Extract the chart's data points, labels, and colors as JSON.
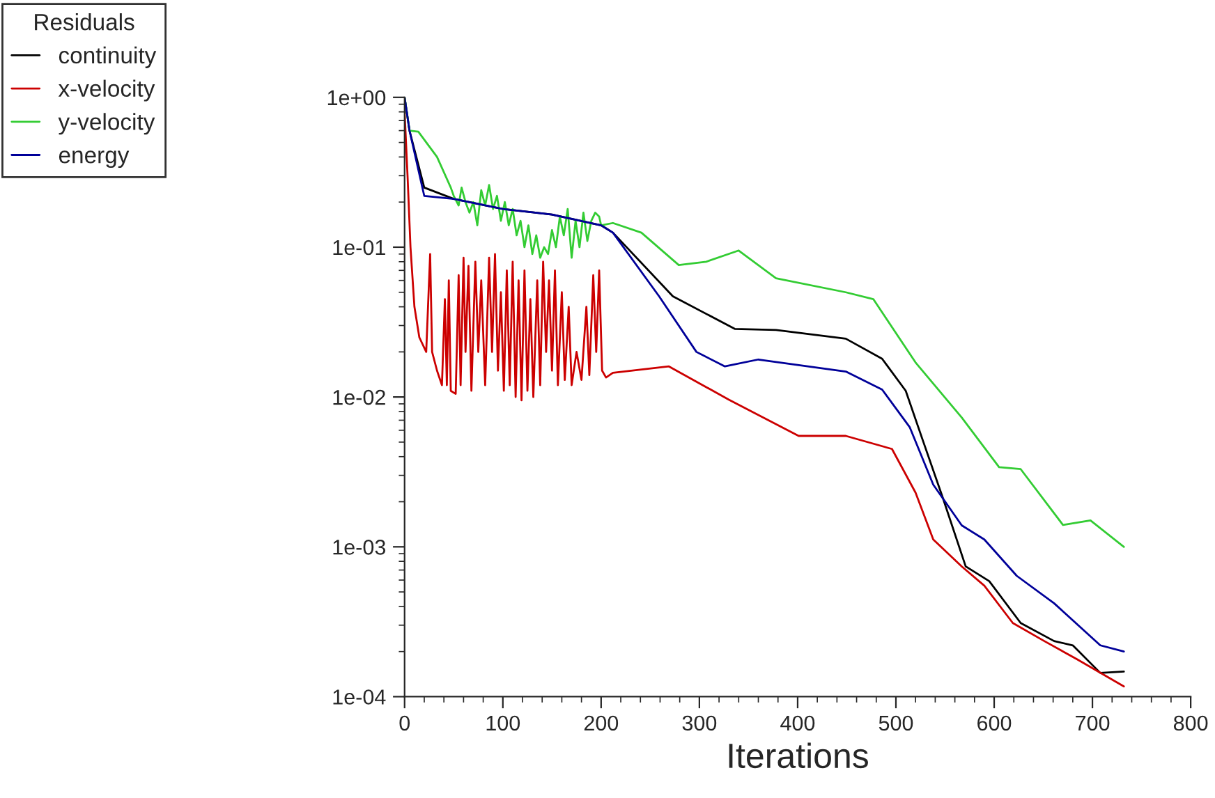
{
  "chart_data": {
    "type": "line",
    "xlabel": "Iterations",
    "legend_title": "Residuals",
    "legend": "top left",
    "log": "y",
    "grid": false,
    "marker": "none",
    "line_style": "solid",
    "xlim": [
      0,
      800
    ],
    "xticks": [
      0,
      100,
      200,
      300,
      400,
      500,
      600,
      700,
      800
    ],
    "ylim": [
      0.0001,
      1
    ],
    "yticks": [
      {
        "value": 0.0001,
        "label": "1e-04"
      },
      {
        "value": 0.001,
        "label": "1e-03"
      },
      {
        "value": 0.01,
        "label": "1e-02"
      },
      {
        "value": 0.1,
        "label": "1e-01"
      },
      {
        "value": 1,
        "label": "1e+00"
      }
    ],
    "series": [
      {
        "name": "continuity",
        "color": "#000000",
        "x": [
          0,
          5,
          20,
          50,
          100,
          150,
          200,
          212,
          273,
          336,
          378,
          449,
          486,
          510,
          528,
          548,
          571,
          595,
          627,
          661,
          680,
          708,
          732
        ],
        "values": [
          1.0,
          0.6,
          0.25,
          0.21,
          0.18,
          0.165,
          0.14,
          0.125,
          0.047,
          0.0285,
          0.028,
          0.0245,
          0.018,
          0.011,
          0.005,
          0.0021,
          0.00074,
          0.00059,
          0.00031,
          0.000235,
          0.00022,
          0.000144,
          0.000147
        ]
      },
      {
        "name": "x-velocity",
        "color": "#cc0000",
        "x": [
          0,
          3,
          6,
          10,
          15,
          22,
          26,
          28,
          33,
          38,
          41,
          43,
          45,
          47,
          52,
          55,
          57,
          60,
          62,
          65,
          68,
          72,
          75,
          78,
          82,
          86,
          89,
          92,
          95,
          98,
          101,
          104,
          107,
          110,
          113,
          116,
          119,
          122,
          125,
          128,
          131,
          135,
          138,
          141,
          144,
          147,
          150,
          153,
          156,
          160,
          163,
          167,
          170,
          175,
          180,
          185,
          188,
          192,
          195,
          198,
          201,
          205,
          212,
          269,
          330,
          401,
          449,
          496,
          520,
          538,
          567,
          590,
          619,
          651,
          684,
          732
        ],
        "values": [
          0.8,
          0.3,
          0.1,
          0.04,
          0.025,
          0.02,
          0.09,
          0.02,
          0.015,
          0.012,
          0.045,
          0.012,
          0.06,
          0.011,
          0.0105,
          0.065,
          0.012,
          0.085,
          0.02,
          0.075,
          0.011,
          0.08,
          0.02,
          0.06,
          0.012,
          0.085,
          0.02,
          0.09,
          0.015,
          0.05,
          0.011,
          0.07,
          0.012,
          0.08,
          0.01,
          0.06,
          0.0095,
          0.07,
          0.011,
          0.045,
          0.01,
          0.06,
          0.012,
          0.08,
          0.02,
          0.06,
          0.015,
          0.07,
          0.012,
          0.05,
          0.013,
          0.04,
          0.012,
          0.02,
          0.013,
          0.04,
          0.014,
          0.065,
          0.02,
          0.07,
          0.015,
          0.0135,
          0.0145,
          0.016,
          0.0096,
          0.0055,
          0.0055,
          0.0045,
          0.0023,
          0.00112,
          0.00074,
          0.00055,
          0.00031,
          0.000235,
          0.000178,
          0.000117
        ]
      },
      {
        "name": "y-velocity",
        "color": "#33cc33",
        "x": [
          0,
          5,
          14,
          33,
          47,
          50,
          55,
          58,
          62,
          66,
          70,
          74,
          78,
          82,
          86,
          90,
          94,
          98,
          102,
          106,
          110,
          114,
          118,
          122,
          126,
          130,
          134,
          138,
          142,
          146,
          150,
          154,
          158,
          162,
          166,
          170,
          174,
          178,
          182,
          186,
          190,
          194,
          198,
          200,
          212,
          241,
          279,
          307,
          340,
          378,
          449,
          477,
          520,
          567,
          605,
          627,
          670,
          698,
          732
        ],
        "values": [
          1.0,
          0.6,
          0.59,
          0.4,
          0.25,
          0.22,
          0.19,
          0.25,
          0.2,
          0.17,
          0.2,
          0.14,
          0.24,
          0.19,
          0.26,
          0.18,
          0.22,
          0.15,
          0.2,
          0.14,
          0.18,
          0.12,
          0.15,
          0.1,
          0.14,
          0.09,
          0.12,
          0.085,
          0.1,
          0.09,
          0.13,
          0.1,
          0.16,
          0.12,
          0.18,
          0.085,
          0.15,
          0.1,
          0.17,
          0.11,
          0.15,
          0.17,
          0.16,
          0.14,
          0.145,
          0.125,
          0.076,
          0.08,
          0.095,
          0.062,
          0.05,
          0.045,
          0.017,
          0.0073,
          0.0034,
          0.0033,
          0.0014,
          0.0015,
          0.001
        ]
      },
      {
        "name": "energy",
        "color": "#000099",
        "x": [
          0,
          5,
          20,
          50,
          100,
          150,
          200,
          212,
          259,
          297,
          326,
          360,
          449,
          486,
          514,
          538,
          567,
          590,
          623,
          661,
          708,
          732
        ],
        "values": [
          1.0,
          0.6,
          0.22,
          0.21,
          0.18,
          0.165,
          0.14,
          0.125,
          0.047,
          0.02,
          0.016,
          0.0178,
          0.0148,
          0.0112,
          0.0063,
          0.0026,
          0.00139,
          0.00112,
          0.00064,
          0.00042,
          0.00022,
          0.0002
        ]
      }
    ]
  }
}
